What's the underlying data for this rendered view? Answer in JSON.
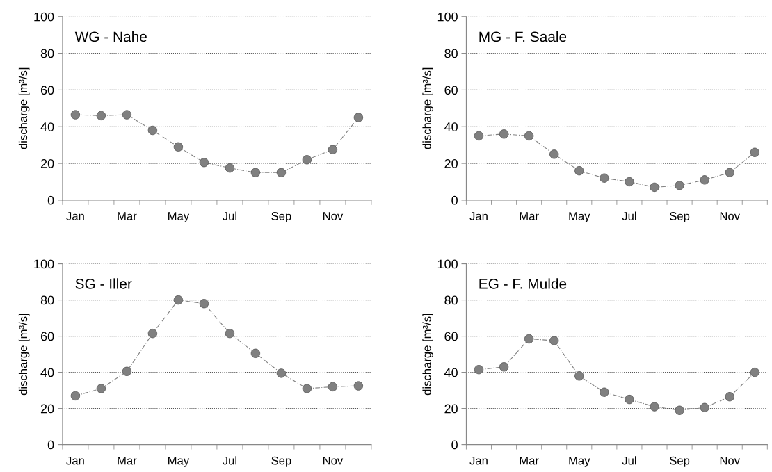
{
  "chart_data": [
    {
      "type": "line",
      "title": "WG - Nahe",
      "ylabel": "discharge [m³/s]",
      "categories": [
        "Jan",
        null,
        "Mar",
        null,
        "May",
        null,
        "Jul",
        null,
        "Sep",
        null,
        "Nov",
        null
      ],
      "series": [
        {
          "color": "#808080",
          "values": [
            46.5,
            46,
            46.5,
            38,
            29,
            20.5,
            17.5,
            15,
            15,
            22,
            27.5,
            45
          ]
        }
      ],
      "ylim": [
        0,
        100
      ],
      "yticks": [
        0,
        20,
        40,
        60,
        80,
        100
      ],
      "grid": "y",
      "marker": "circle",
      "line_style": "dashed"
    },
    {
      "type": "line",
      "title": "MG - F. Saale",
      "ylabel": "discharge [m³/s]",
      "categories": [
        "Jan",
        null,
        "Mar",
        null,
        "May",
        null,
        "Jul",
        null,
        "Sep",
        null,
        "Nov",
        null
      ],
      "series": [
        {
          "color": "#808080",
          "values": [
            35,
            36,
            35,
            25,
            16,
            12,
            10,
            7,
            8,
            11,
            15,
            26
          ]
        }
      ],
      "ylim": [
        0,
        100
      ],
      "yticks": [
        0,
        20,
        40,
        60,
        80,
        100
      ],
      "grid": "y",
      "marker": "circle",
      "line_style": "dashed"
    },
    {
      "type": "line",
      "title": "SG - Iller",
      "ylabel": "discharge [m³/s]",
      "categories": [
        "Jan",
        null,
        "Mar",
        null,
        "May",
        null,
        "Jul",
        null,
        "Sep",
        null,
        "Nov",
        null
      ],
      "series": [
        {
          "color": "#808080",
          "values": [
            27,
            31,
            40.5,
            61.5,
            80,
            78,
            61.5,
            50.5,
            39.5,
            31,
            32,
            32.5
          ]
        }
      ],
      "ylim": [
        0,
        100
      ],
      "yticks": [
        0,
        20,
        40,
        60,
        80,
        100
      ],
      "grid": "y",
      "marker": "circle",
      "line_style": "dashed"
    },
    {
      "type": "line",
      "title": "EG - F. Mulde",
      "ylabel": "discharge [m³/s]",
      "categories": [
        "Jan",
        null,
        "Mar",
        null,
        "May",
        null,
        "Jul",
        null,
        "Sep",
        null,
        "Nov",
        null
      ],
      "series": [
        {
          "color": "#808080",
          "values": [
            41.5,
            43,
            58.5,
            57.5,
            38,
            29,
            25,
            21,
            19,
            20.5,
            26.5,
            40
          ]
        }
      ],
      "ylim": [
        0,
        100
      ],
      "yticks": [
        0,
        20,
        40,
        60,
        80,
        100
      ],
      "grid": "y",
      "marker": "circle",
      "line_style": "dashed"
    }
  ]
}
